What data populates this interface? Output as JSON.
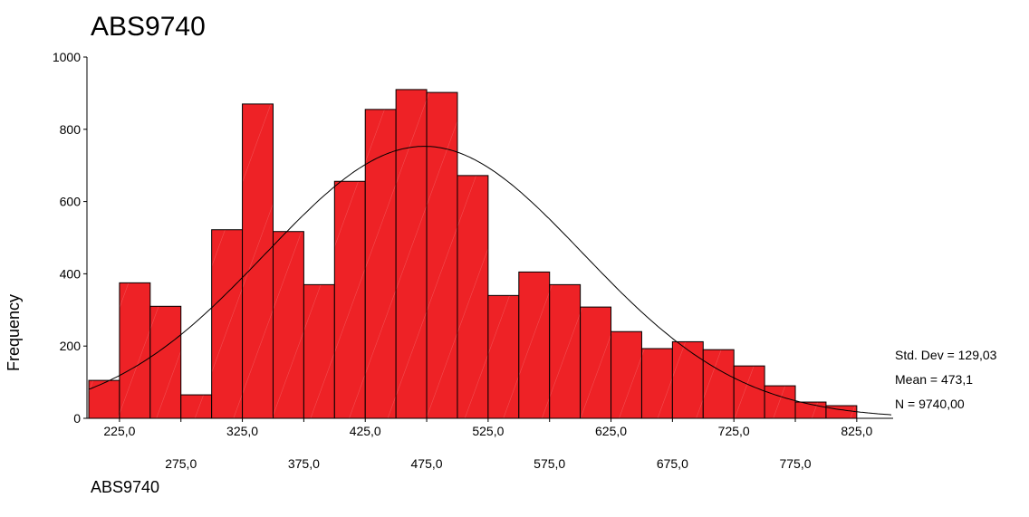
{
  "chart_data": {
    "type": "bar",
    "title": "ABS9740",
    "xlabel": "ABS9740",
    "ylabel": "Frequency",
    "ylim": [
      0,
      1000
    ],
    "yticks": [
      0,
      200,
      400,
      600,
      800,
      1000
    ],
    "bin_width": 25,
    "x_range": [
      200,
      850
    ],
    "bins": [
      {
        "center": 212.5,
        "value": 105
      },
      {
        "center": 237.5,
        "value": 375
      },
      {
        "center": 262.5,
        "value": 310
      },
      {
        "center": 287.5,
        "value": 65
      },
      {
        "center": 312.5,
        "value": 522
      },
      {
        "center": 337.5,
        "value": 870
      },
      {
        "center": 362.5,
        "value": 517
      },
      {
        "center": 387.5,
        "value": 370
      },
      {
        "center": 412.5,
        "value": 656
      },
      {
        "center": 437.5,
        "value": 855
      },
      {
        "center": 462.5,
        "value": 910
      },
      {
        "center": 487.5,
        "value": 902
      },
      {
        "center": 512.5,
        "value": 672
      },
      {
        "center": 537.5,
        "value": 340
      },
      {
        "center": 562.5,
        "value": 405
      },
      {
        "center": 587.5,
        "value": 370
      },
      {
        "center": 612.5,
        "value": 308
      },
      {
        "center": 637.5,
        "value": 240
      },
      {
        "center": 662.5,
        "value": 193
      },
      {
        "center": 687.5,
        "value": 212
      },
      {
        "center": 712.5,
        "value": 190
      },
      {
        "center": 737.5,
        "value": 145
      },
      {
        "center": 762.5,
        "value": 90
      },
      {
        "center": 787.5,
        "value": 45
      },
      {
        "center": 812.5,
        "value": 35
      }
    ],
    "xticks_top": [
      {
        "value": 225,
        "label": "225,0"
      },
      {
        "value": 325,
        "label": "325,0"
      },
      {
        "value": 425,
        "label": "425,0"
      },
      {
        "value": 525,
        "label": "525,0"
      },
      {
        "value": 625,
        "label": "625,0"
      },
      {
        "value": 725,
        "label": "725,0"
      },
      {
        "value": 825,
        "label": "825,0"
      }
    ],
    "xticks_bottom": [
      {
        "value": 275,
        "label": "275,0"
      },
      {
        "value": 375,
        "label": "375,0"
      },
      {
        "value": 475,
        "label": "475,0"
      },
      {
        "value": 575,
        "label": "575,0"
      },
      {
        "value": 675,
        "label": "675,0"
      },
      {
        "value": 775,
        "label": "775,0"
      }
    ],
    "normal_curve": {
      "mean": 473.1,
      "std_dev": 129.03,
      "n": 9740
    },
    "stats": {
      "std_dev": "Std. Dev = 129,03",
      "mean": "Mean = 473,1",
      "n": "N = 9740,00"
    },
    "colors": {
      "bar_fill": "#ee2226",
      "bar_stroke": "#000000",
      "curve": "#000000"
    }
  }
}
